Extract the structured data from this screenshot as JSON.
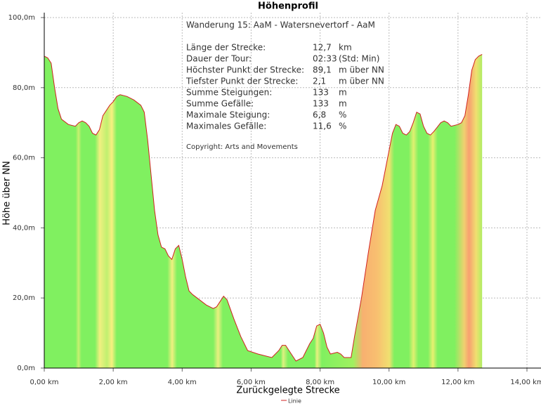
{
  "chart_data": {
    "type": "area",
    "title": "Höhenprofil",
    "x_label": "Zurückgelegte Strecke",
    "y_label": "Höhe über NN",
    "x": [
      0.0,
      0.1,
      0.2,
      0.3,
      0.4,
      0.5,
      0.7,
      0.9,
      1.0,
      1.1,
      1.2,
      1.3,
      1.4,
      1.5,
      1.6,
      1.7,
      1.9,
      2.0,
      2.1,
      2.2,
      2.4,
      2.6,
      2.8,
      2.9,
      3.0,
      3.1,
      3.2,
      3.3,
      3.4,
      3.5,
      3.6,
      3.7,
      3.8,
      3.9,
      4.0,
      4.1,
      4.2,
      4.3,
      4.5,
      4.7,
      4.9,
      5.0,
      5.1,
      5.2,
      5.3,
      5.5,
      5.7,
      5.9,
      6.2,
      6.6,
      6.8,
      6.9,
      7.0,
      7.1,
      7.3,
      7.5,
      7.6,
      7.7,
      7.8,
      7.9,
      8.0,
      8.1,
      8.2,
      8.3,
      8.5,
      8.6,
      8.7,
      8.9,
      9.0,
      9.2,
      9.4,
      9.6,
      9.8,
      10.0,
      10.1,
      10.2,
      10.3,
      10.4,
      10.5,
      10.6,
      10.7,
      10.8,
      10.9,
      11.0,
      11.1,
      11.2,
      11.3,
      11.5,
      11.6,
      11.7,
      11.8,
      12.0,
      12.1,
      12.2,
      12.3,
      12.4,
      12.5,
      12.6,
      12.7
    ],
    "series": [
      {
        "name": "Linie",
        "color": "#d02020",
        "values": [
          89,
          88.5,
          87,
          80,
          74,
          71,
          69.5,
          69,
          70,
          70.5,
          70,
          69,
          67,
          66.5,
          68,
          72,
          75,
          76,
          77.5,
          78,
          77.5,
          76.5,
          75,
          73,
          65,
          55,
          45,
          38,
          34.5,
          34,
          32,
          31,
          34,
          35,
          31,
          26,
          22,
          21,
          19.5,
          18,
          17,
          17.5,
          19,
          20.5,
          19.5,
          14,
          9,
          5,
          4,
          3,
          5,
          6.5,
          6.5,
          5,
          2,
          3,
          5,
          7,
          8.5,
          12,
          12.5,
          10,
          6,
          4,
          4.5,
          4,
          3,
          3,
          9,
          20,
          33,
          45,
          52,
          62,
          67,
          69.5,
          69,
          67,
          66.5,
          67.5,
          70,
          73,
          72.5,
          69,
          67,
          66.5,
          67.5,
          70,
          70.5,
          70,
          69,
          69.5,
          70,
          72,
          78,
          85,
          88,
          89,
          89.5
        ]
      }
    ],
    "xlim": [
      0,
      14
    ],
    "xticks": [
      {
        "value": 0,
        "label": "0,00 km"
      },
      {
        "value": 2,
        "label": "2,00 km"
      },
      {
        "value": 4,
        "label": "4,00 km"
      },
      {
        "value": 6,
        "label": "6,00 km"
      },
      {
        "value": 8,
        "label": "8,00 km"
      },
      {
        "value": 10,
        "label": "10,00 km"
      },
      {
        "value": 12,
        "label": "12,00 km"
      },
      {
        "value": 14,
        "label": "14,00 km"
      }
    ],
    "ylim": [
      0,
      100
    ],
    "yticks": [
      {
        "value": 0,
        "label": "0,0m"
      },
      {
        "value": 20,
        "label": "20,0m"
      },
      {
        "value": 40,
        "label": "40,0m"
      },
      {
        "value": 60,
        "label": "60,0m"
      },
      {
        "value": 80,
        "label": "80,0m"
      },
      {
        "value": 100,
        "label": "100,0m"
      }
    ],
    "grid": true,
    "info": {
      "heading": "Wanderung 15: AaM - Watersnevertorf - AaM",
      "rows": [
        [
          "Länge der Strecke:",
          "12,7",
          "km"
        ],
        [
          "Dauer der Tour:",
          "02:33",
          "(Std: Min)"
        ],
        [
          "Höchster Punkt der Strecke:",
          "89,1",
          "m über NN"
        ],
        [
          "Tiefster Punkt der Strecke:",
          "2,1",
          "m über NN"
        ],
        [
          "Summe Steigungen:",
          "133",
          "m"
        ],
        [
          "Summe Gefälle:",
          "133",
          "m"
        ],
        [
          "Maximale Steigung:",
          "6,8",
          "%"
        ],
        [
          "Maximales Gefälle:",
          "11,6",
          "%"
        ]
      ],
      "copyright": "Copyright: Arts and Movements"
    }
  }
}
